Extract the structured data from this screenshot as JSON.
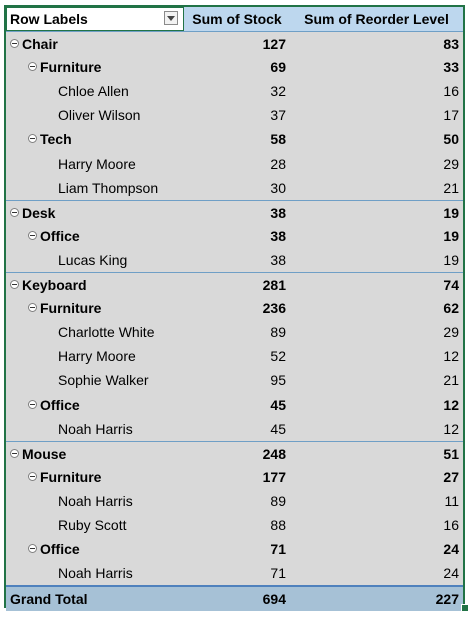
{
  "pivot": {
    "headers": {
      "row_labels": "Row Labels",
      "sum_stock": "Sum of Stock",
      "sum_reorder": "Sum of Reorder Level"
    },
    "rows": [
      {
        "level": 1,
        "label": "Chair",
        "stock": "127",
        "reorder": "83"
      },
      {
        "level": 2,
        "label": "Furniture",
        "stock": "69",
        "reorder": "33"
      },
      {
        "level": 3,
        "label": "Chloe Allen",
        "stock": "32",
        "reorder": "16"
      },
      {
        "level": 3,
        "label": "Oliver Wilson",
        "stock": "37",
        "reorder": "17"
      },
      {
        "level": 2,
        "label": "Tech",
        "stock": "58",
        "reorder": "50"
      },
      {
        "level": 3,
        "label": "Harry Moore",
        "stock": "28",
        "reorder": "29"
      },
      {
        "level": 3,
        "label": "Liam Thompson",
        "stock": "30",
        "reorder": "21"
      },
      {
        "level": 1,
        "label": "Desk",
        "stock": "38",
        "reorder": "19"
      },
      {
        "level": 2,
        "label": "Office",
        "stock": "38",
        "reorder": "19"
      },
      {
        "level": 3,
        "label": "Lucas King",
        "stock": "38",
        "reorder": "19"
      },
      {
        "level": 1,
        "label": "Keyboard",
        "stock": "281",
        "reorder": "74"
      },
      {
        "level": 2,
        "label": "Furniture",
        "stock": "236",
        "reorder": "62"
      },
      {
        "level": 3,
        "label": "Charlotte White",
        "stock": "89",
        "reorder": "29"
      },
      {
        "level": 3,
        "label": "Harry Moore",
        "stock": "52",
        "reorder": "12"
      },
      {
        "level": 3,
        "label": "Sophie Walker",
        "stock": "95",
        "reorder": "21"
      },
      {
        "level": 2,
        "label": "Office",
        "stock": "45",
        "reorder": "12"
      },
      {
        "level": 3,
        "label": "Noah Harris",
        "stock": "45",
        "reorder": "12"
      },
      {
        "level": 1,
        "label": "Mouse",
        "stock": "248",
        "reorder": "51"
      },
      {
        "level": 2,
        "label": "Furniture",
        "stock": "177",
        "reorder": "27"
      },
      {
        "level": 3,
        "label": "Noah Harris",
        "stock": "89",
        "reorder": "11"
      },
      {
        "level": 3,
        "label": "Ruby Scott",
        "stock": "88",
        "reorder": "16"
      },
      {
        "level": 2,
        "label": "Office",
        "stock": "71",
        "reorder": "24"
      },
      {
        "level": 3,
        "label": "Noah Harris",
        "stock": "71",
        "reorder": "24"
      }
    ],
    "grand_total": {
      "label": "Grand Total",
      "stock": "694",
      "reorder": "227"
    }
  }
}
